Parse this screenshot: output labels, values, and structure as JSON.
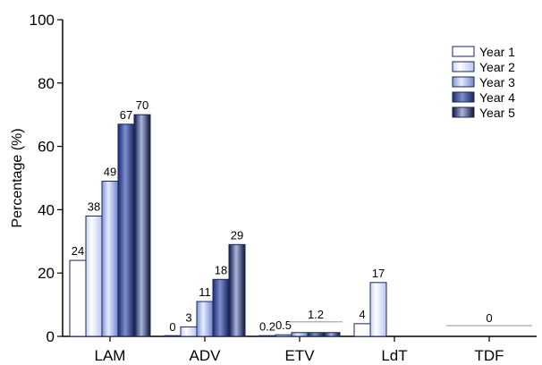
{
  "chart_data": {
    "type": "bar",
    "title": "",
    "xlabel": "",
    "ylabel": "Percentage (%)",
    "ylim": [
      0,
      100
    ],
    "yticks": [
      0,
      20,
      40,
      60,
      80,
      100
    ],
    "grid": false,
    "legend_position": "top-right",
    "categories": [
      "LAM",
      "ADV",
      "ETV",
      "LdT",
      "TDF"
    ],
    "series": [
      {
        "name": "Year 1",
        "color": "#ffffff",
        "values": [
          24,
          0,
          0.2,
          4,
          null
        ]
      },
      {
        "name": "Year 2",
        "color": "#dfe6f8",
        "values": [
          38,
          3,
          0.5,
          17,
          null
        ]
      },
      {
        "name": "Year 3",
        "color": "#a9b9e6",
        "values": [
          49,
          11,
          1.2,
          null,
          null
        ]
      },
      {
        "name": "Year 4",
        "color": "#2f3f86",
        "values": [
          67,
          18,
          1.2,
          null,
          null
        ]
      },
      {
        "name": "Year 5",
        "color": "#1b2458",
        "values": [
          70,
          29,
          1.2,
          null,
          null
        ]
      }
    ],
    "data_labels": [
      {
        "category": "LAM",
        "series": "Year 1",
        "text": "24"
      },
      {
        "category": "LAM",
        "series": "Year 2",
        "text": "38"
      },
      {
        "category": "LAM",
        "series": "Year 3",
        "text": "49"
      },
      {
        "category": "LAM",
        "series": "Year 4",
        "text": "67"
      },
      {
        "category": "LAM",
        "series": "Year 5",
        "text": "70"
      },
      {
        "category": "ADV",
        "series": "Year 1",
        "text": "0"
      },
      {
        "category": "ADV",
        "series": "Year 2",
        "text": "3"
      },
      {
        "category": "ADV",
        "series": "Year 3",
        "text": "11"
      },
      {
        "category": "ADV",
        "series": "Year 4",
        "text": "18"
      },
      {
        "category": "ADV",
        "series": "Year 5",
        "text": "29"
      },
      {
        "category": "ETV",
        "series": "Year 1",
        "text": "0.2"
      },
      {
        "category": "ETV",
        "series": "Year 2",
        "text": "0.5"
      },
      {
        "category": "ETV",
        "series": "Year 3",
        "text": "1.2",
        "group_start": "Year 3",
        "group_end": "Year 5"
      },
      {
        "category": "LdT",
        "series": "Year 1",
        "text": "4"
      },
      {
        "category": "LdT",
        "series": "Year 2",
        "text": "17"
      },
      {
        "category": "TDF",
        "series": "Year 1",
        "text": "0",
        "group_start": "Year 1",
        "group_end": "Year 5"
      }
    ]
  }
}
